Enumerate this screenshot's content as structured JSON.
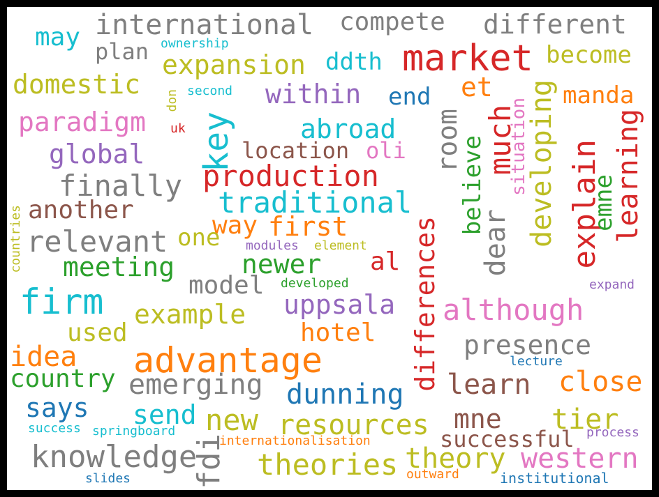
{
  "palette": {
    "red": "#d62728",
    "orange": "#ff7f0e",
    "olive": "#bcbd22",
    "cyan": "#17becf",
    "gray": "#7f7f7f",
    "purple": "#9467bd",
    "pink": "#e377c2",
    "blue": "#1f77b4",
    "green": "#2ca02c",
    "brown": "#8c564b"
  },
  "words": [
    {
      "text": "advantage",
      "color": "orange"
    },
    {
      "text": "market",
      "color": "red"
    },
    {
      "text": "firm",
      "color": "cyan"
    },
    {
      "text": "international",
      "color": "gray"
    },
    {
      "text": "compete",
      "color": "gray"
    },
    {
      "text": "different",
      "color": "gray"
    },
    {
      "text": "may",
      "color": "cyan"
    },
    {
      "text": "plan",
      "color": "gray"
    },
    {
      "text": "ownership",
      "color": "cyan"
    },
    {
      "text": "expansion",
      "color": "olive"
    },
    {
      "text": "ddth",
      "color": "cyan"
    },
    {
      "text": "become",
      "color": "olive"
    },
    {
      "text": "domestic",
      "color": "olive"
    },
    {
      "text": "second",
      "color": "cyan"
    },
    {
      "text": "within",
      "color": "purple"
    },
    {
      "text": "end",
      "color": "blue"
    },
    {
      "text": "et",
      "color": "orange"
    },
    {
      "text": "manda",
      "color": "orange"
    },
    {
      "text": "paradigm",
      "color": "pink"
    },
    {
      "text": "don",
      "color": "olive"
    },
    {
      "text": "uk",
      "color": "red"
    },
    {
      "text": "abroad",
      "color": "cyan"
    },
    {
      "text": "global",
      "color": "purple"
    },
    {
      "text": "key",
      "color": "cyan"
    },
    {
      "text": "location",
      "color": "brown"
    },
    {
      "text": "oli",
      "color": "pink"
    },
    {
      "text": "room",
      "color": "gray"
    },
    {
      "text": "much",
      "color": "red"
    },
    {
      "text": "believe",
      "color": "green"
    },
    {
      "text": "situation",
      "color": "pink"
    },
    {
      "text": "developing",
      "color": "olive"
    },
    {
      "text": "explain",
      "color": "red"
    },
    {
      "text": "emne",
      "color": "green"
    },
    {
      "text": "learning",
      "color": "red"
    },
    {
      "text": "finally",
      "color": "gray"
    },
    {
      "text": "production",
      "color": "red"
    },
    {
      "text": "traditional",
      "color": "cyan"
    },
    {
      "text": "another",
      "color": "brown"
    },
    {
      "text": "countries",
      "color": "olive"
    },
    {
      "text": "relevant",
      "color": "gray"
    },
    {
      "text": "way",
      "color": "orange"
    },
    {
      "text": "first",
      "color": "orange"
    },
    {
      "text": "one",
      "color": "olive"
    },
    {
      "text": "modules",
      "color": "purple"
    },
    {
      "text": "element",
      "color": "olive"
    },
    {
      "text": "differences",
      "color": "red"
    },
    {
      "text": "dear",
      "color": "gray"
    },
    {
      "text": "meeting",
      "color": "green"
    },
    {
      "text": "newer",
      "color": "green"
    },
    {
      "text": "al",
      "color": "red"
    },
    {
      "text": "model",
      "color": "gray"
    },
    {
      "text": "developed",
      "color": "green"
    },
    {
      "text": "expand",
      "color": "purple"
    },
    {
      "text": "uppsala",
      "color": "purple"
    },
    {
      "text": "although",
      "color": "pink"
    },
    {
      "text": "example",
      "color": "olive"
    },
    {
      "text": "used",
      "color": "olive"
    },
    {
      "text": "hotel",
      "color": "orange"
    },
    {
      "text": "presence",
      "color": "gray"
    },
    {
      "text": "idea",
      "color": "orange"
    },
    {
      "text": "lecture",
      "color": "blue"
    },
    {
      "text": "country",
      "color": "green"
    },
    {
      "text": "emerging",
      "color": "gray"
    },
    {
      "text": "learn",
      "color": "brown"
    },
    {
      "text": "close",
      "color": "orange"
    },
    {
      "text": "dunning",
      "color": "blue"
    },
    {
      "text": "says",
      "color": "blue"
    },
    {
      "text": "send",
      "color": "cyan"
    },
    {
      "text": "new",
      "color": "olive"
    },
    {
      "text": "resources",
      "color": "olive"
    },
    {
      "text": "mne",
      "color": "brown"
    },
    {
      "text": "tier",
      "color": "olive"
    },
    {
      "text": "success",
      "color": "cyan"
    },
    {
      "text": "springboard",
      "color": "cyan"
    },
    {
      "text": "internationalisation",
      "color": "orange"
    },
    {
      "text": "successful",
      "color": "brown"
    },
    {
      "text": "process",
      "color": "purple"
    },
    {
      "text": "knowledge",
      "color": "gray"
    },
    {
      "text": "fdi",
      "color": "gray"
    },
    {
      "text": "theories",
      "color": "olive"
    },
    {
      "text": "theory",
      "color": "olive"
    },
    {
      "text": "western",
      "color": "pink"
    },
    {
      "text": "slides",
      "color": "blue"
    },
    {
      "text": "outward",
      "color": "orange"
    },
    {
      "text": "institutional",
      "color": "blue"
    }
  ]
}
